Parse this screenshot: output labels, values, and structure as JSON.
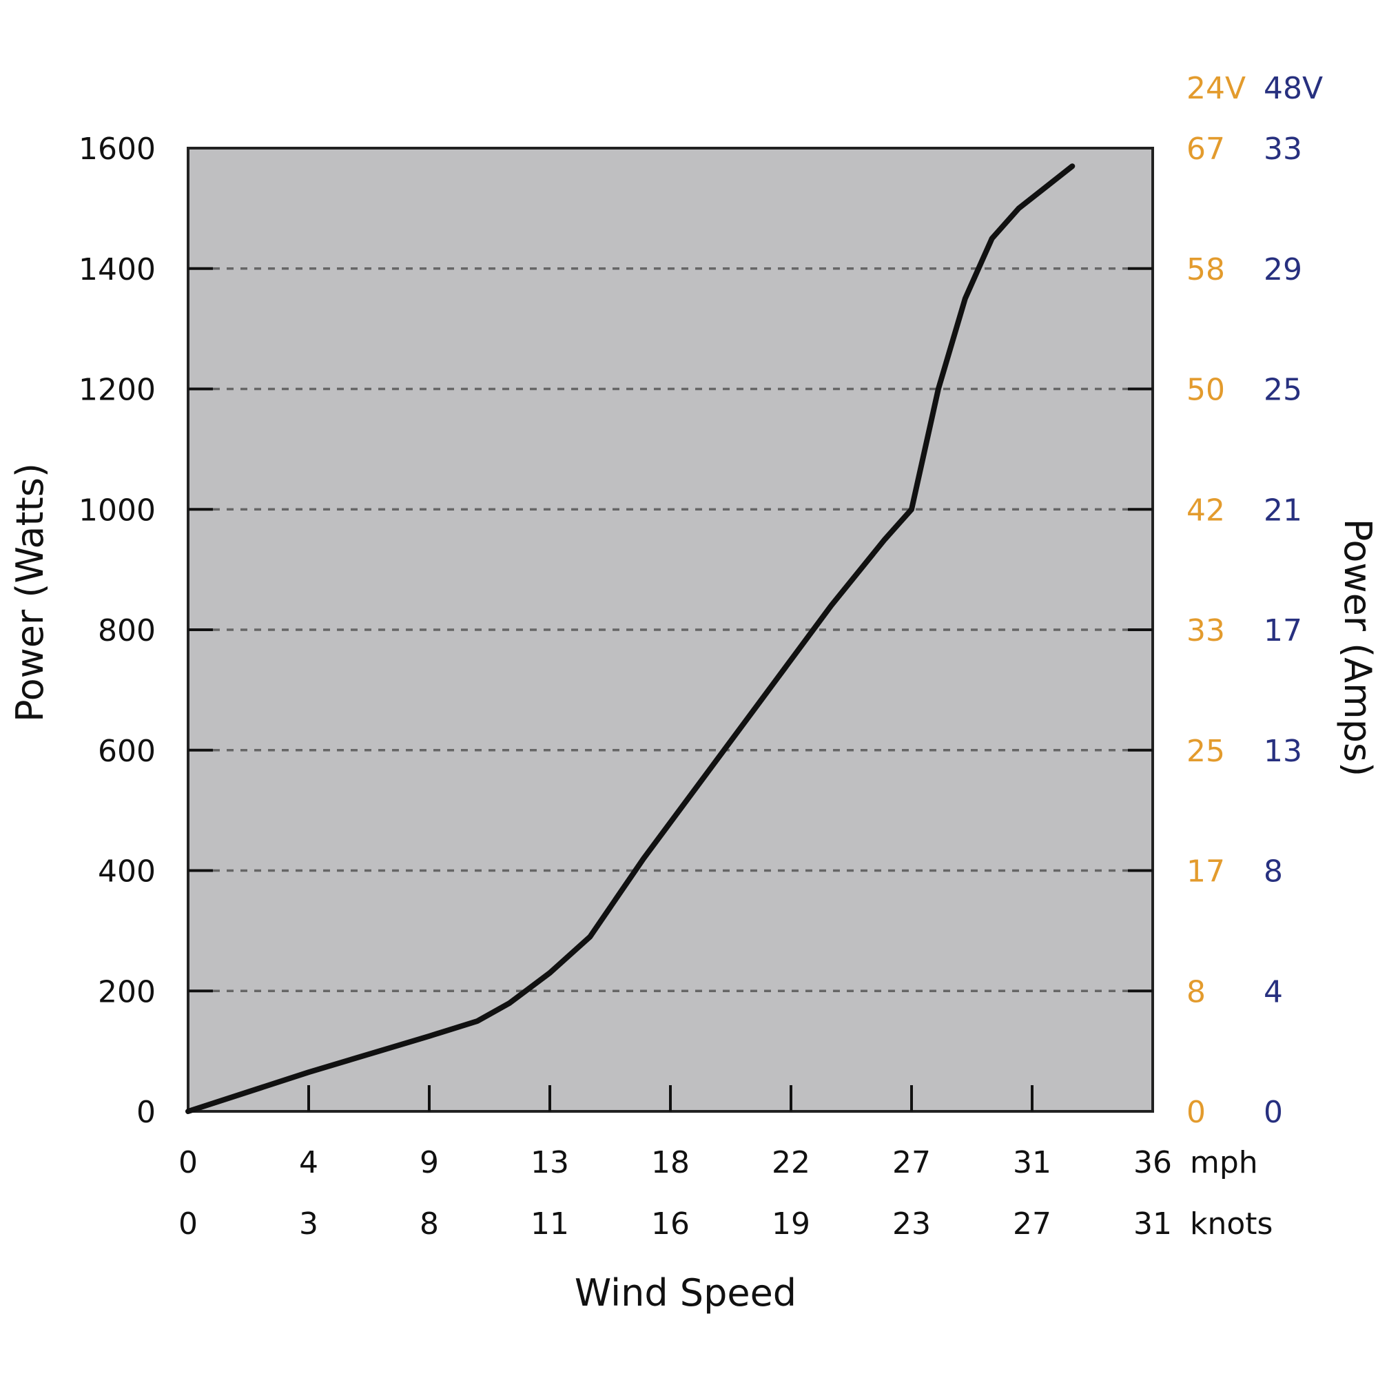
{
  "chart_data": {
    "type": "line",
    "title": "",
    "xlabel": "Wind Speed",
    "ylabel": "Power (Watts)",
    "ylabel_right": "Power (Amps)",
    "xlim": [
      0,
      36
    ],
    "ylim": [
      0,
      1600
    ],
    "grid": "horizontal dashed",
    "x_ticks_mph": [
      "0",
      "4",
      "9",
      "13",
      "18",
      "22",
      "27",
      "31",
      "36"
    ],
    "x_ticks_knots": [
      "0",
      "3",
      "8",
      "11",
      "16",
      "19",
      "23",
      "27",
      "31"
    ],
    "x_unit_mph": "mph",
    "x_unit_knots": "knots",
    "y_ticks": [
      "0",
      "200",
      "400",
      "600",
      "800",
      "1000",
      "1200",
      "1400",
      "1600"
    ],
    "amps_24v": {
      "label": "24V",
      "ticks": [
        "0",
        "8",
        "17",
        "25",
        "33",
        "42",
        "50",
        "58",
        "67"
      ],
      "color": "#E39B2D"
    },
    "amps_48v": {
      "label": "48V",
      "ticks": [
        "0",
        "4",
        "8",
        "13",
        "17",
        "21",
        "25",
        "29",
        "33"
      ],
      "color": "#27307F"
    },
    "series": [
      {
        "x": [
          0,
          4.5,
          9,
          10.8,
          12,
          13.5,
          15,
          17,
          20,
          22,
          24,
          26,
          27,
          28,
          29,
          29.5,
          30,
          31,
          33
        ],
        "y": [
          0,
          65,
          125,
          150,
          180,
          230,
          290,
          420,
          600,
          720,
          840,
          950,
          1000,
          1200,
          1350,
          1400,
          1450,
          1500,
          1570
        ]
      }
    ]
  }
}
